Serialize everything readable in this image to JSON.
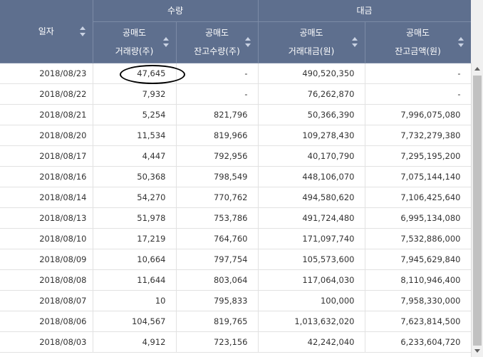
{
  "header": {
    "date_label": "일자",
    "group_volume": "수량",
    "group_amount": "대금",
    "col1": {
      "line1": "공매도",
      "line2": "거래량(주)"
    },
    "col2": {
      "line1": "공매도",
      "line2": "잔고수량(주)"
    },
    "col3": {
      "line1": "공매도",
      "line2": "거래대금(원)"
    },
    "col4": {
      "line1": "공매도",
      "line2": "잔고금액(원)"
    }
  },
  "rows": [
    {
      "date": "2018/08/23",
      "vol": "47,645",
      "bal_qty": "-",
      "amt": "490,520,350",
      "bal_amt": "-"
    },
    {
      "date": "2018/08/22",
      "vol": "7,932",
      "bal_qty": "-",
      "amt": "76,262,870",
      "bal_amt": "-"
    },
    {
      "date": "2018/08/21",
      "vol": "5,254",
      "bal_qty": "821,796",
      "amt": "50,366,390",
      "bal_amt": "7,996,075,080"
    },
    {
      "date": "2018/08/20",
      "vol": "11,534",
      "bal_qty": "819,966",
      "amt": "109,278,430",
      "bal_amt": "7,732,279,380"
    },
    {
      "date": "2018/08/17",
      "vol": "4,447",
      "bal_qty": "792,956",
      "amt": "40,170,790",
      "bal_amt": "7,295,195,200"
    },
    {
      "date": "2018/08/16",
      "vol": "50,368",
      "bal_qty": "798,549",
      "amt": "448,106,070",
      "bal_amt": "7,075,144,140"
    },
    {
      "date": "2018/08/14",
      "vol": "54,270",
      "bal_qty": "770,762",
      "amt": "494,580,620",
      "bal_amt": "7,106,425,640"
    },
    {
      "date": "2018/08/13",
      "vol": "51,978",
      "bal_qty": "753,786",
      "amt": "491,724,480",
      "bal_amt": "6,995,134,080"
    },
    {
      "date": "2018/08/10",
      "vol": "17,219",
      "bal_qty": "764,760",
      "amt": "171,097,740",
      "bal_amt": "7,532,886,000"
    },
    {
      "date": "2018/08/09",
      "vol": "10,664",
      "bal_qty": "797,754",
      "amt": "105,573,600",
      "bal_amt": "7,945,629,840"
    },
    {
      "date": "2018/08/08",
      "vol": "11,644",
      "bal_qty": "803,064",
      "amt": "117,064,030",
      "bal_amt": "8,110,946,400"
    },
    {
      "date": "2018/08/07",
      "vol": "10",
      "bal_qty": "795,833",
      "amt": "100,000",
      "bal_amt": "7,958,330,000"
    },
    {
      "date": "2018/08/06",
      "vol": "104,567",
      "bal_qty": "819,765",
      "amt": "1,013,632,020",
      "bal_amt": "7,623,814,500"
    },
    {
      "date": "2018/08/03",
      "vol": "4,912",
      "bal_qty": "723,156",
      "amt": "42,242,040",
      "bal_amt": "6,233,604,720"
    }
  ]
}
